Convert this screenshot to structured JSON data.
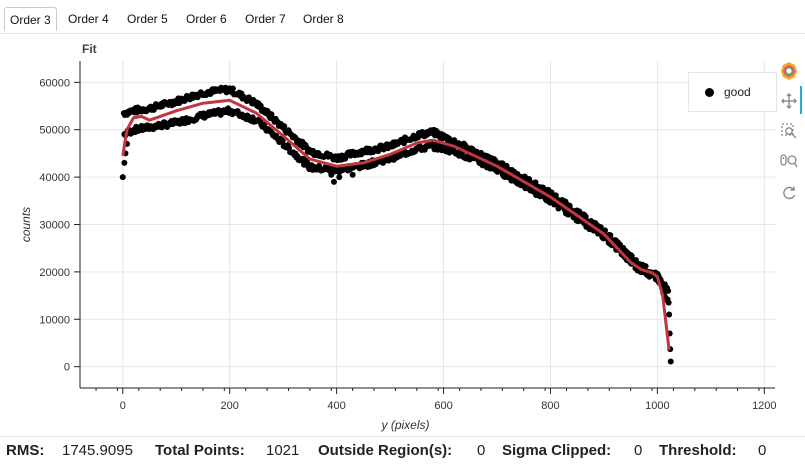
{
  "tabs": [
    {
      "label": "Order 3",
      "active": true
    },
    {
      "label": "Order 4"
    },
    {
      "label": "Order 5"
    },
    {
      "label": "Order 6"
    },
    {
      "label": "Order 7"
    },
    {
      "label": "Order 8"
    }
  ],
  "plot": {
    "title": "Fit"
  },
  "legend": {
    "label": "good"
  },
  "toolbar": {
    "tools": [
      {
        "name": "bokeh-logo-icon"
      },
      {
        "name": "pan-icon",
        "active": true
      },
      {
        "name": "box-zoom-icon"
      },
      {
        "name": "wheel-zoom-icon"
      },
      {
        "name": "reset-icon"
      }
    ]
  },
  "status": {
    "rms_label": "RMS:",
    "rms_value": "1745.9095",
    "total_label": "Total Points:",
    "total_value": "1021",
    "outside_label": "Outside Region(s):",
    "outside_value": "0",
    "sigma_label": "Sigma Clipped:",
    "sigma_value": "0",
    "threshold_label": "Threshold:",
    "threshold_value": "0"
  },
  "chart_data": {
    "type": "scatter",
    "title": "Fit",
    "xlabel": "y (pixels)",
    "ylabel": "counts",
    "xlim": [
      -80,
      1220
    ],
    "ylim": [
      -4500,
      64500
    ],
    "xticks": [
      0,
      200,
      400,
      600,
      800,
      1000,
      1200
    ],
    "yticks": [
      0,
      10000,
      20000,
      30000,
      40000,
      50000,
      60000
    ],
    "grid": true,
    "legend_position": "top-right",
    "colors": {
      "points": "#000000",
      "fit": "#c1363f"
    },
    "series": [
      {
        "name": "good",
        "kind": "points",
        "upper_band": [
          [
            2,
            53500
          ],
          [
            20,
            54000
          ],
          [
            50,
            54500
          ],
          [
            100,
            56000
          ],
          [
            150,
            57800
          ],
          [
            200,
            58500
          ],
          [
            250,
            55500
          ],
          [
            300,
            50500
          ],
          [
            350,
            45500
          ],
          [
            400,
            44000
          ],
          [
            450,
            45500
          ],
          [
            500,
            46500
          ],
          [
            550,
            48800
          ],
          [
            580,
            49500
          ],
          [
            620,
            47500
          ],
          [
            700,
            43000
          ],
          [
            800,
            36500
          ],
          [
            900,
            28500
          ],
          [
            960,
            22000
          ],
          [
            1000,
            19000
          ],
          [
            1020,
            16000
          ]
        ],
        "lower_band": [
          [
            2,
            49000
          ],
          [
            20,
            50000
          ],
          [
            50,
            50500
          ],
          [
            100,
            51500
          ],
          [
            150,
            53000
          ],
          [
            200,
            54000
          ],
          [
            250,
            52000
          ],
          [
            300,
            47000
          ],
          [
            350,
            42000
          ],
          [
            400,
            41500
          ],
          [
            450,
            42500
          ],
          [
            500,
            44000
          ],
          [
            550,
            46000
          ],
          [
            580,
            46500
          ],
          [
            620,
            45500
          ],
          [
            700,
            41500
          ],
          [
            800,
            35000
          ],
          [
            900,
            27500
          ],
          [
            960,
            21000
          ],
          [
            1000,
            18500
          ],
          [
            1020,
            13500
          ]
        ],
        "outliers": [
          [
            0,
            40000
          ],
          [
            3,
            43000
          ],
          [
            5,
            45000
          ],
          [
            8,
            47000
          ],
          [
            390,
            40500
          ],
          [
            395,
            39000
          ],
          [
            405,
            40000
          ],
          [
            430,
            40500
          ],
          [
            1022,
            11000
          ],
          [
            1023,
            7000
          ],
          [
            1024,
            3700
          ],
          [
            1025,
            1100
          ]
        ]
      },
      {
        "kind": "line",
        "points": [
          [
            0,
            44500
          ],
          [
            8,
            50000
          ],
          [
            20,
            52500
          ],
          [
            35,
            52800
          ],
          [
            50,
            52000
          ],
          [
            70,
            52800
          ],
          [
            100,
            54000
          ],
          [
            150,
            55600
          ],
          [
            200,
            56200
          ],
          [
            250,
            53500
          ],
          [
            300,
            48700
          ],
          [
            350,
            43800
          ],
          [
            400,
            42300
          ],
          [
            450,
            43000
          ],
          [
            500,
            44800
          ],
          [
            550,
            47200
          ],
          [
            580,
            47800
          ],
          [
            620,
            46500
          ],
          [
            700,
            42300
          ],
          [
            800,
            35800
          ],
          [
            900,
            28000
          ],
          [
            950,
            22000
          ],
          [
            970,
            20500
          ],
          [
            990,
            19800
          ],
          [
            1000,
            19000
          ],
          [
            1010,
            15000
          ],
          [
            1022,
            3500
          ]
        ]
      }
    ]
  }
}
